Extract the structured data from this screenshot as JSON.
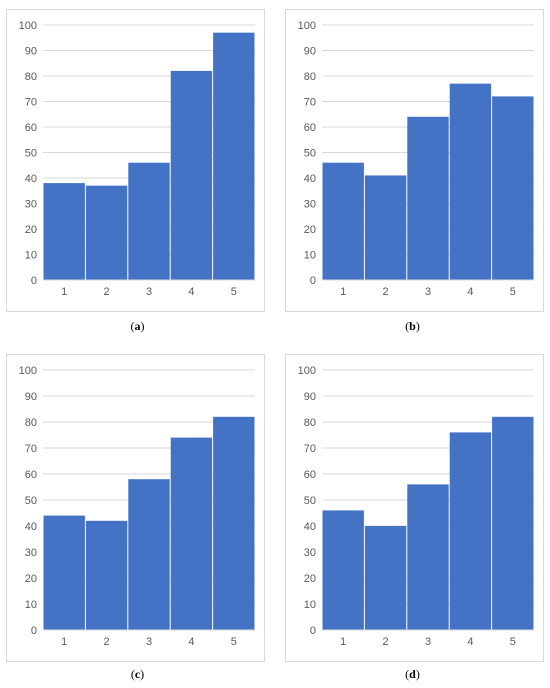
{
  "colors": {
    "bar": "#4472C4",
    "grid": "#d9d9d9",
    "tick_text": "#595959",
    "frame_border": "#d9d9d9"
  },
  "chart_data": [
    {
      "type": "bar",
      "caption": "a",
      "categories": [
        "1",
        "2",
        "3",
        "4",
        "5"
      ],
      "values": [
        38,
        37,
        46,
        82,
        97
      ],
      "ylim": [
        0,
        100
      ],
      "yticks": [
        "0",
        "10",
        "20",
        "30",
        "40",
        "50",
        "60",
        "70",
        "80",
        "90",
        "100"
      ],
      "grid": true,
      "legend": "none"
    },
    {
      "type": "bar",
      "caption": "b",
      "categories": [
        "1",
        "2",
        "3",
        "4",
        "5"
      ],
      "values": [
        46,
        41,
        64,
        77,
        72
      ],
      "ylim": [
        0,
        100
      ],
      "yticks": [
        "0",
        "10",
        "20",
        "30",
        "40",
        "50",
        "60",
        "70",
        "80",
        "90",
        "100"
      ],
      "grid": true,
      "legend": "none"
    },
    {
      "type": "bar",
      "caption": "c",
      "categories": [
        "1",
        "2",
        "3",
        "4",
        "5"
      ],
      "values": [
        44,
        42,
        58,
        74,
        82
      ],
      "ylim": [
        0,
        100
      ],
      "yticks": [
        "0",
        "10",
        "20",
        "30",
        "40",
        "50",
        "60",
        "70",
        "80",
        "90",
        "100"
      ],
      "grid": true,
      "legend": "none"
    },
    {
      "type": "bar",
      "caption": "d",
      "categories": [
        "1",
        "2",
        "3",
        "4",
        "5"
      ],
      "values": [
        46,
        40,
        56,
        76,
        82
      ],
      "ylim": [
        0,
        100
      ],
      "yticks": [
        "0",
        "10",
        "20",
        "30",
        "40",
        "50",
        "60",
        "70",
        "80",
        "90",
        "100"
      ],
      "grid": true,
      "legend": "none"
    }
  ]
}
